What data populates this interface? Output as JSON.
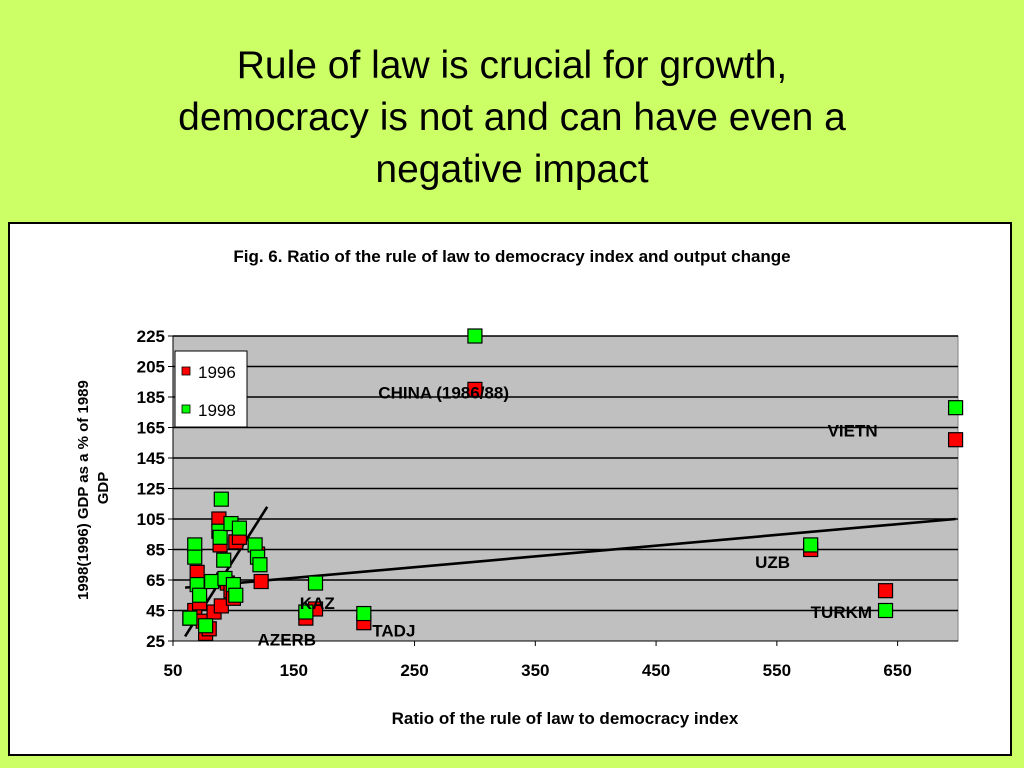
{
  "slide": {
    "title_lines": [
      "Rule of law is crucial for growth,",
      "democracy is not and can have even a",
      "negative impact"
    ]
  },
  "colors": {
    "background": "#ccff66",
    "plot_area": "#c0c0c0",
    "series_1996": "#ff0000",
    "series_1998": "#00ff00"
  },
  "chart_data": {
    "type": "scatter",
    "title": "Fig. 6. Ratio of the rule of law to democracy index and output change",
    "xlabel": "Ratio of the rule of law to democracy index",
    "ylabel": "1998(1996) GDP as a % of 1989 GDP",
    "xlim": [
      50,
      700
    ],
    "ylim": [
      25,
      225
    ],
    "xticks": [
      50,
      150,
      250,
      350,
      450,
      550,
      650
    ],
    "yticks": [
      25,
      45,
      65,
      85,
      105,
      125,
      145,
      165,
      185,
      205,
      225
    ],
    "grid": true,
    "legend_position": "top-left",
    "series": [
      {
        "name": "1996",
        "color": "#ff0000",
        "points": [
          [
            64,
            40
          ],
          [
            68,
            45
          ],
          [
            70,
            70
          ],
          [
            72,
            50
          ],
          [
            75,
            38
          ],
          [
            77,
            30
          ],
          [
            80,
            33
          ],
          [
            84,
            44
          ],
          [
            88,
            105
          ],
          [
            89,
            88
          ],
          [
            90,
            48
          ],
          [
            92,
            65
          ],
          [
            95,
            63
          ],
          [
            98,
            58
          ],
          [
            100,
            53
          ],
          [
            102,
            90
          ],
          [
            105,
            93
          ],
          [
            120,
            82
          ],
          [
            123,
            64
          ],
          [
            160,
            40
          ],
          [
            168,
            46
          ],
          [
            208,
            37
          ],
          [
            300,
            190
          ],
          [
            578,
            85
          ],
          [
            640,
            58
          ],
          [
            698,
            157
          ]
        ]
      },
      {
        "name": "1998",
        "color": "#00ff00",
        "points": [
          [
            64,
            40
          ],
          [
            68,
            88
          ],
          [
            68,
            80
          ],
          [
            70,
            62
          ],
          [
            72,
            55
          ],
          [
            77,
            35
          ],
          [
            82,
            64
          ],
          [
            88,
            97
          ],
          [
            89,
            93
          ],
          [
            90,
            118
          ],
          [
            92,
            78
          ],
          [
            93,
            66
          ],
          [
            98,
            102
          ],
          [
            100,
            62
          ],
          [
            102,
            55
          ],
          [
            105,
            99
          ],
          [
            118,
            88
          ],
          [
            120,
            80
          ],
          [
            122,
            75
          ],
          [
            160,
            44
          ],
          [
            168,
            63
          ],
          [
            208,
            43
          ],
          [
            300,
            225
          ],
          [
            578,
            88
          ],
          [
            640,
            45
          ],
          [
            698,
            178
          ]
        ]
      }
    ],
    "trendlines": [
      {
        "from": [
          60,
          60
        ],
        "to": [
          698,
          105
        ]
      },
      {
        "from": [
          60,
          28
        ],
        "to": [
          128,
          113
        ]
      }
    ],
    "annotations": [
      {
        "text": "CHINA (1986/88)",
        "x": 220,
        "y": 184
      },
      {
        "text": "VIETN",
        "x": 592,
        "y": 159
      },
      {
        "text": "UZB",
        "x": 532,
        "y": 73
      },
      {
        "text": "TURKM",
        "x": 578,
        "y": 40
      },
      {
        "text": "KAZ",
        "x": 155,
        "y": 46
      },
      {
        "text": "TADJ",
        "x": 215,
        "y": 28
      },
      {
        "text": "AZERB",
        "x": 120,
        "y": 22
      }
    ]
  }
}
